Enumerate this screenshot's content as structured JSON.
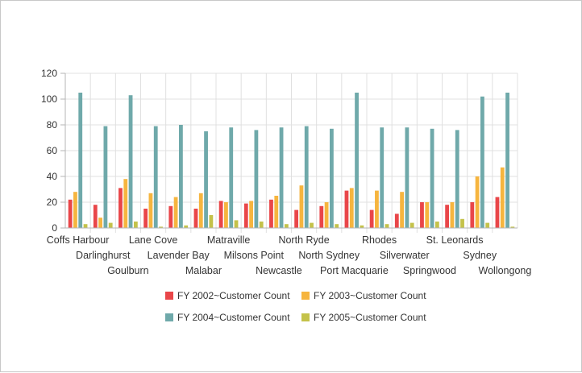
{
  "chart_data": {
    "type": "bar",
    "categories": [
      "Coffs Harbour",
      "Darlinghurst",
      "Goulburn",
      "Lane Cove",
      "Lavender Bay",
      "Malabar",
      "Matraville",
      "Milsons Point",
      "Newcastle",
      "North Ryde",
      "North Sydney",
      "Port Macquarie",
      "Rhodes",
      "Silverwater",
      "Springwood",
      "St. Leonards",
      "Sydney",
      "Wollongong"
    ],
    "series": [
      {
        "name": "FY 2002~Customer Count",
        "color": "#e94649",
        "values": [
          22,
          18,
          31,
          15,
          17,
          15,
          21,
          19,
          22,
          14,
          17,
          29,
          14,
          11,
          20,
          18,
          20,
          24
        ]
      },
      {
        "name": "FY 2003~Customer Count",
        "color": "#f6b53f",
        "values": [
          28,
          8,
          38,
          27,
          24,
          27,
          20,
          21,
          25,
          33,
          20,
          31,
          29,
          28,
          20,
          20,
          40,
          47
        ]
      },
      {
        "name": "FY 2004~Customer Count",
        "color": "#6fa9aa",
        "values": [
          105,
          79,
          103,
          79,
          80,
          75,
          78,
          76,
          78,
          79,
          77,
          105,
          78,
          78,
          77,
          76,
          102,
          105
        ]
      },
      {
        "name": "FY 2005~Customer Count",
        "color": "#c4c24a",
        "values": [
          3,
          4,
          5,
          1,
          2,
          10,
          6,
          5,
          3,
          4,
          3,
          2,
          3,
          4,
          5,
          7,
          4,
          1
        ]
      }
    ],
    "ylim": [
      0,
      120
    ],
    "yticks": [
      0,
      20,
      40,
      60,
      80,
      100,
      120
    ],
    "xlabel": "",
    "ylabel": "",
    "grid": true,
    "legend": "bottom"
  }
}
